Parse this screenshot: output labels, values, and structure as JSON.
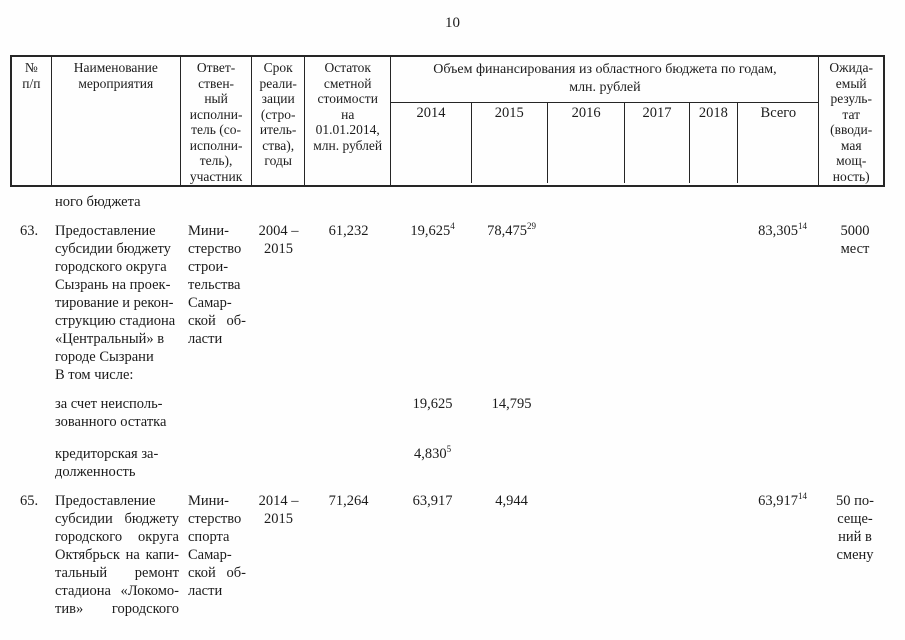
{
  "page": {
    "number": "10"
  },
  "table": {
    "header": {
      "col_num": "№\nп/п",
      "col_name": "Наименование\nмероприятия",
      "col_executor": "Ответ-\nствен-\nный\nисполни-\nтель (со-\nисполни-\nтель),\nучастник",
      "col_term": "Срок\nреали-\nзации\n(стро-\nитель-\nства),\nгоды",
      "col_balance": "Остаток\nсметной\nстоимости\nна\n01.01.2014,\nмлн. рублей",
      "col_funding_span": "Объем финансирования из областного бюджета по годам,\nмлн. рублей",
      "years": [
        "2014",
        "2015",
        "2016",
        "2017",
        "2018",
        "Всего"
      ],
      "col_result": "Ожида-\nемый\nрезуль-\nтат\n(вводи-\nмая\nмощ-\nность)"
    },
    "body": {
      "continuation": "ного бюджета",
      "row63": {
        "num": "63.",
        "name": "Предоставление\nсубсидии бюджету\nгородского округа\nСызрань на проек-\nтирование и рекон-\nструкцию стадиона\n«Центральный» в\nгороде Сызрани",
        "executor": "Мини-\nстерство\nстрои-\nтельства\nСамар-\nской об-\nласти",
        "term": "2004 –\n2015",
        "balance": "61,232",
        "y2014": "19,625",
        "y2014_sup": "4",
        "y2015": "78,475",
        "y2015_sup": "29",
        "total": "83,305",
        "total_sup": "14",
        "result": "5000\nмест"
      },
      "including_label": "В том числе:",
      "sub_unused_balance": {
        "name": "за счет неисполь-\nзованного остатка",
        "y2014": "19,625",
        "y2015": "14,795"
      },
      "sub_credit_debt": {
        "name": "кредиторская за-\nдолженность",
        "y2014": "4,830",
        "y2014_sup": "5"
      },
      "row65": {
        "num": "65.",
        "name": "Предоставление\nсубсидии бюджету\nгородского округа\nОктябрьск на капи-\nтальный ремонт\nстадиона «Локомо-\nтив» городского",
        "executor": "Мини-\nстерство\nспорта\nСамар-\nской об-\nласти",
        "term": "2014 –\n2015",
        "balance": "71,264",
        "y2014": "63,917",
        "y2015": "4,944",
        "total": "63,917",
        "total_sup": "14",
        "result": "50 по-\nсеще-\nний в\nсмену"
      }
    }
  }
}
